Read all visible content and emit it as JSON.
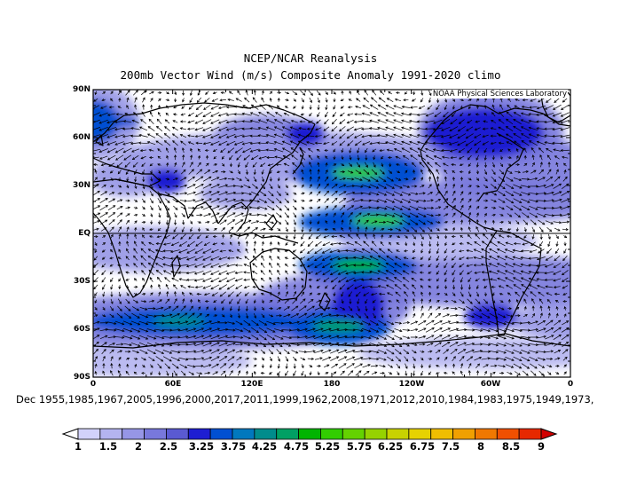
{
  "title_line1": "NCEP/NCAR Reanalysis",
  "title_line2": "200mb Vector Wind (m/s) Composite Anomaly 1991-2020 climo",
  "credit": "NOAA Physical Sciences Laboratory",
  "lat_labels": [
    "90N",
    "60N",
    "30N",
    "EQ",
    "30S",
    "60S",
    "90S"
  ],
  "lon_labels": [
    "0",
    "60E",
    "120E",
    "180",
    "120W",
    "60W",
    "0"
  ],
  "composite_dates": "Dec 1955,1985,1967,2005,1996,2000,2017,2011,1999,1962,2008,1971,2012,2010,1984,1983,1975,1949,1973,",
  "colorbar": {
    "labels": [
      "1",
      "1.5",
      "2",
      "2.5",
      "3.25",
      "3.75",
      "4.25",
      "4.75",
      "5.25",
      "5.75",
      "6.25",
      "6.75",
      "7.5",
      "8",
      "8.5",
      "9"
    ],
    "colors": [
      "#ffffff",
      "#d2d2fa",
      "#b4b4f0",
      "#9696e6",
      "#7878dc",
      "#5a5ad2",
      "#1e1ed2",
      "#0050d2",
      "#0078be",
      "#008c8c",
      "#00a064",
      "#00b400",
      "#32cd00",
      "#64d200",
      "#96d200",
      "#c8d200",
      "#e6d200",
      "#f0be00",
      "#f0a000",
      "#f07800",
      "#f05000",
      "#e62800",
      "#d20000"
    ]
  },
  "map": {
    "features": [
      {
        "name": "pacific-equatorial-jet-max",
        "lon": 215,
        "lat": 8,
        "level": 5.5
      },
      {
        "name": "north-pacific-max",
        "lon": 200,
        "lat": 38,
        "level": 5.5
      },
      {
        "name": "south-pacific-max",
        "lon": 200,
        "lat": -20,
        "level": 5.0
      },
      {
        "name": "southern-ocean-max",
        "lon": 65,
        "lat": -55,
        "level": 4.3
      },
      {
        "name": "southern-ocean-east-max",
        "lon": 185,
        "lat": -58,
        "level": 4.5
      },
      {
        "name": "arctic-max",
        "lon": 15,
        "lat": 70,
        "level": 3.5
      }
    ]
  }
}
